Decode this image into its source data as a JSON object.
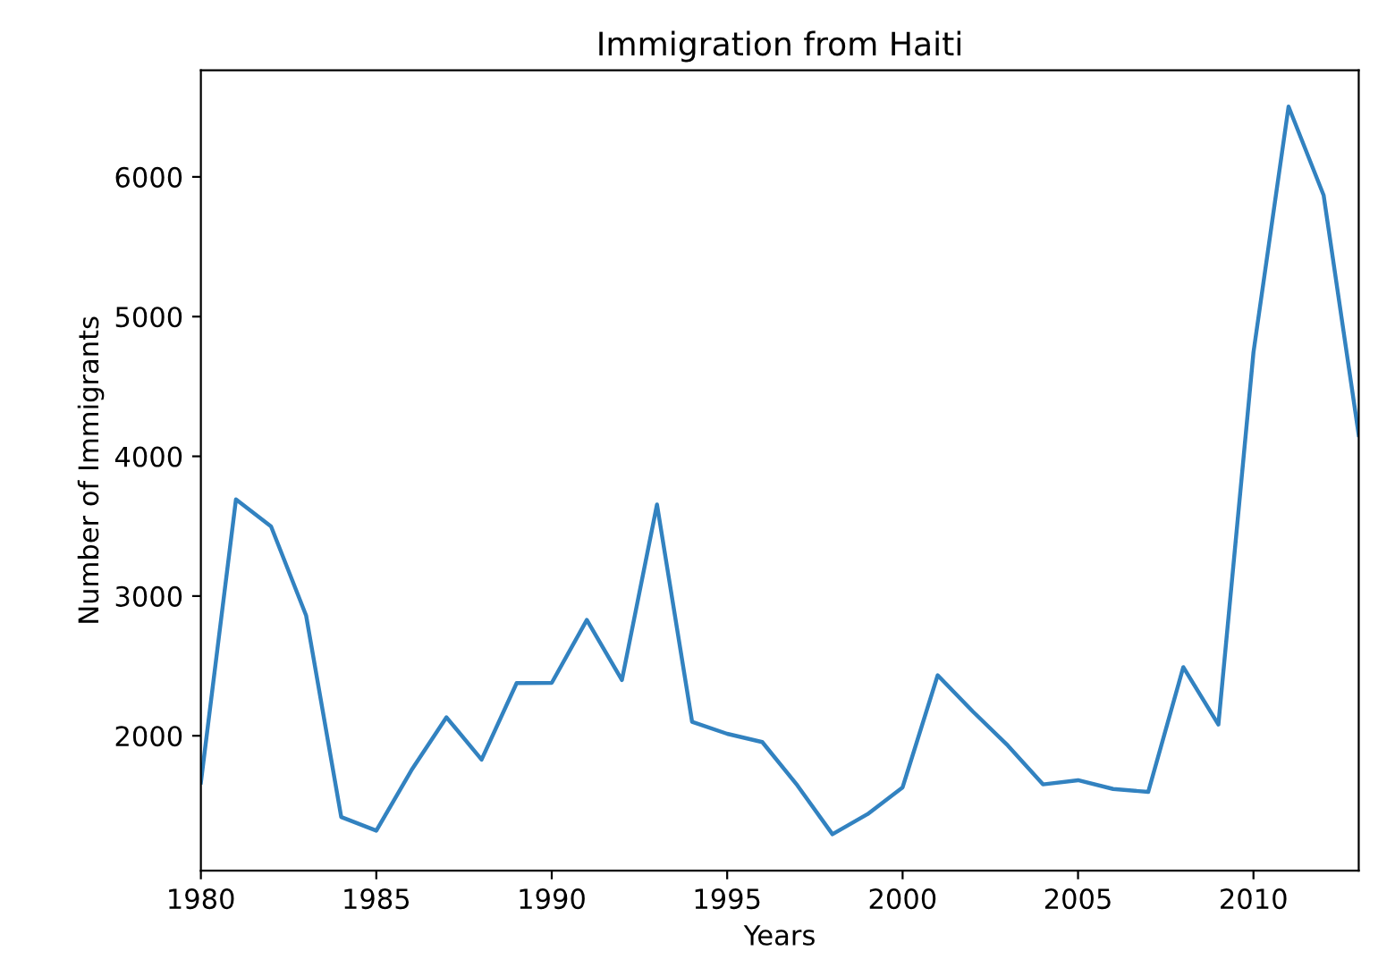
{
  "chart_data": {
    "type": "line",
    "title": "Immigration from Haiti",
    "xlabel": "Years",
    "ylabel": "Number of Immigrants",
    "x": [
      1980,
      1981,
      1982,
      1983,
      1984,
      1985,
      1986,
      1987,
      1988,
      1989,
      1990,
      1991,
      1992,
      1993,
      1994,
      1995,
      1996,
      1997,
      1998,
      1999,
      2000,
      2001,
      2002,
      2003,
      2004,
      2005,
      2006,
      2007,
      2008,
      2009,
      2010,
      2011,
      2012,
      2013
    ],
    "series": [
      {
        "color": "#3282c0",
        "values": [
          1666,
          3692,
          3498,
          2860,
          1418,
          1321,
          1753,
          2132,
          1829,
          2377,
          2379,
          2829,
          2399,
          3655,
          2100,
          2014,
          1955,
          1645,
          1295,
          1439,
          1631,
          2433,
          2174,
          1930,
          1652,
          1682,
          1619,
          1598,
          2491,
          2080,
          4744,
          6503,
          5868,
          4152
        ]
      }
    ],
    "xlim": [
      1980,
      2013
    ],
    "xticks": [
      1980,
      1985,
      1990,
      1995,
      2000,
      2005,
      2010
    ],
    "ylim": [
      1035,
      6763
    ],
    "yticks": [
      2000,
      3000,
      4000,
      5000,
      6000
    ],
    "grid": false,
    "legend": false
  }
}
